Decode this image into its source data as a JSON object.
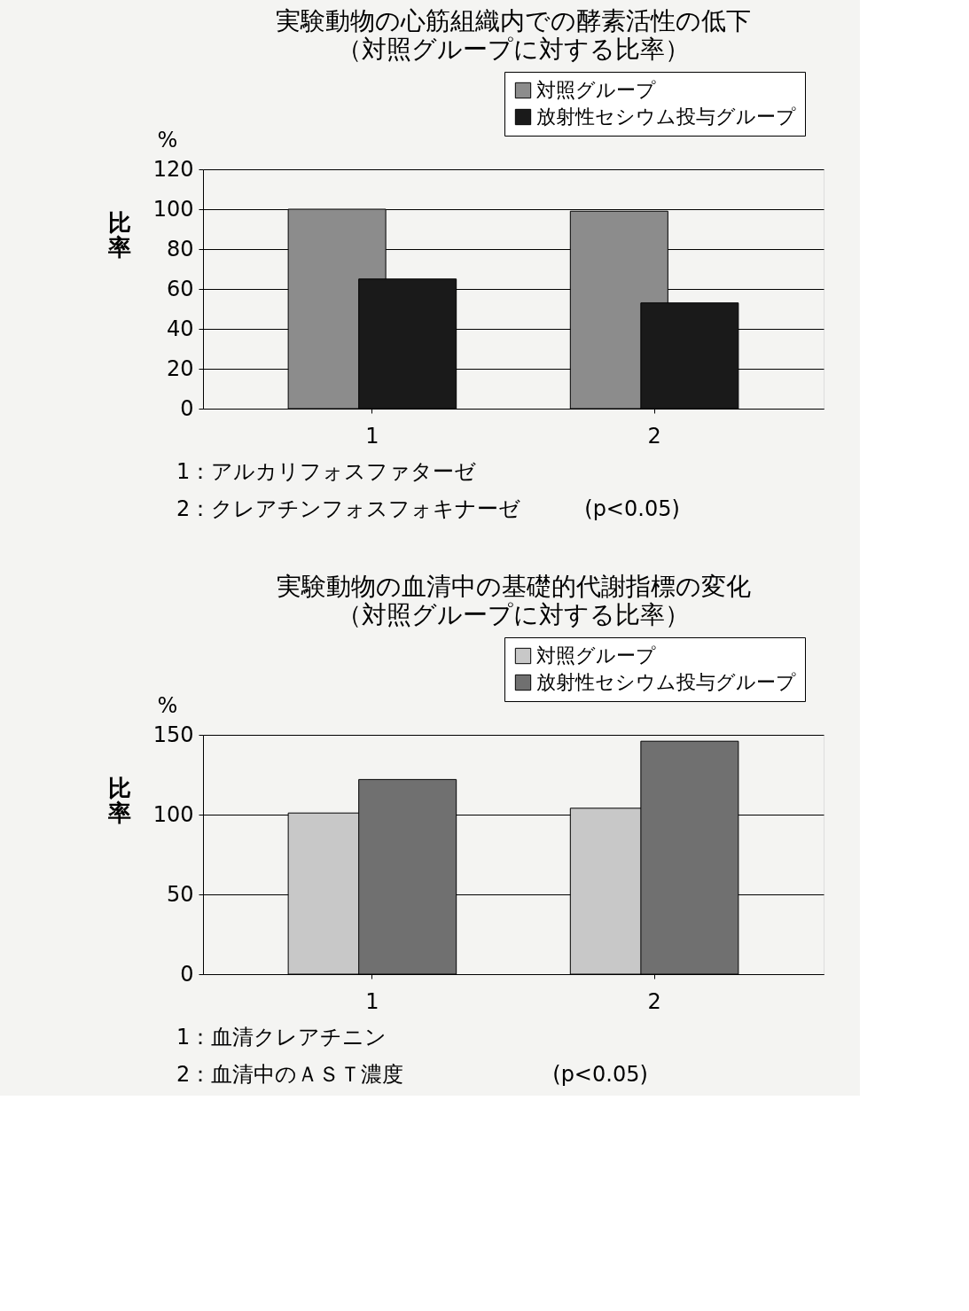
{
  "chart_data": [
    {
      "type": "bar",
      "title": "実験動物の心筋組織内での酵素活性の低下",
      "subtitle": "（対照グループに対する比率）",
      "ylabel": "比率",
      "categories": [
        "1",
        "2"
      ],
      "series": [
        {
          "name": "対照グループ",
          "color": "#8c8c8c",
          "values": [
            100,
            99
          ]
        },
        {
          "name": "放射性セシウム投与グループ",
          "color": "#1a1a1a",
          "values": [
            65,
            53
          ]
        }
      ],
      "ylim": [
        0,
        120
      ],
      "yticks": [
        0,
        20,
        40,
        60,
        80,
        100,
        120
      ],
      "grid": "y",
      "legend": "top right",
      "annotations": [
        "%",
        "1：アルカリフォスファターゼ",
        "2：クレアチンフォスフォキナーゼ　　　(p<0.05)"
      ]
    },
    {
      "type": "bar",
      "title": "実験動物の血清中の基礎的代謝指標の変化",
      "subtitle": "（対照グループに対する比率）",
      "ylabel": "比率",
      "categories": [
        "1",
        "2"
      ],
      "series": [
        {
          "name": "対照グループ",
          "color": "#c8c8c8",
          "values": [
            101,
            104
          ]
        },
        {
          "name": "放射性セシウム投与グループ",
          "color": "#707070",
          "values": [
            122,
            146
          ]
        }
      ],
      "ylim": [
        0,
        150
      ],
      "yticks": [
        0,
        50,
        100,
        150
      ],
      "grid": "y",
      "legend": "top right",
      "annotations": [
        "%",
        "1：血清クレアチニン",
        "2：血清中のＡＳＴ濃度　　　　　　　(p<0.05)"
      ]
    }
  ]
}
